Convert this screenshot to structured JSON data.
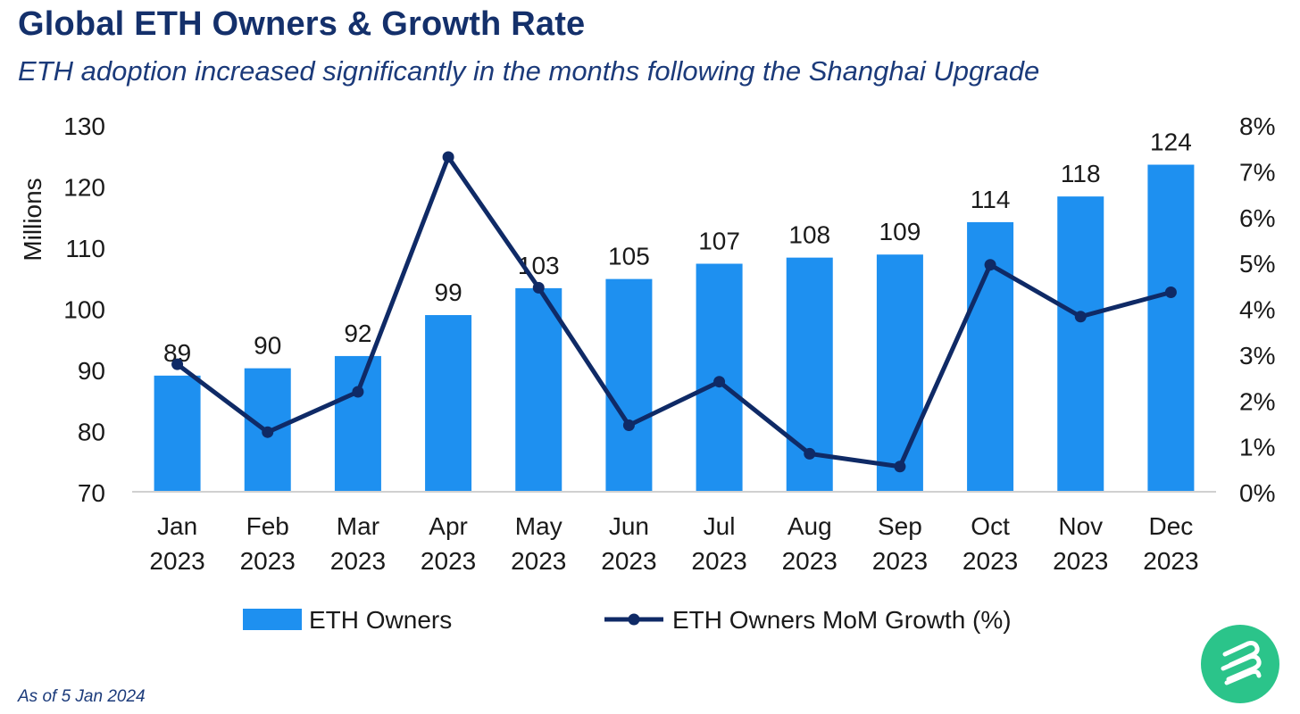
{
  "colors": {
    "title": "#14306b",
    "bar": "#1e90f0",
    "line": "#0f2a66",
    "axis_text": "#1a1a1a",
    "axis_line": "#d0d0d0",
    "logo_bg": "#2bc48a"
  },
  "footnote": "As of 5 Jan 2024",
  "logo": {
    "icon": "brand-logo-icon"
  },
  "chart_data": {
    "type": "bar",
    "title": "Global ETH Owners & Growth Rate",
    "subtitle": "ETH adoption increased significantly in the months following the Shanghai Upgrade",
    "categories": [
      [
        "Jan",
        "2023"
      ],
      [
        "Feb",
        "2023"
      ],
      [
        "Mar",
        "2023"
      ],
      [
        "Apr",
        "2023"
      ],
      [
        "May",
        "2023"
      ],
      [
        "Jun",
        "2023"
      ],
      [
        "Jul",
        "2023"
      ],
      [
        "Aug",
        "2023"
      ],
      [
        "Sep",
        "2023"
      ],
      [
        "Oct",
        "2023"
      ],
      [
        "Nov",
        "2023"
      ],
      [
        "Dec",
        "2023"
      ]
    ],
    "ylabel": "Millions",
    "ylim": [
      70,
      130
    ],
    "yticks": [
      "70",
      "80",
      "90",
      "100",
      "110",
      "120",
      "130"
    ],
    "y2lim": [
      0,
      8
    ],
    "y2ticks": [
      "0%",
      "1%",
      "2%",
      "3%",
      "4%",
      "5%",
      "6%",
      "7%",
      "8%"
    ],
    "grid": false,
    "legend_position": "bottom",
    "series": [
      {
        "name": "ETH Owners",
        "type": "bar",
        "axis": "left",
        "values": [
          89,
          90.2,
          92.2,
          98.9,
          103.3,
          104.8,
          107.3,
          108.3,
          108.8,
          114.1,
          118.3,
          123.5
        ],
        "labels": [
          "89",
          "90",
          "92",
          "99",
          "103",
          "105",
          "107",
          "108",
          "109",
          "114",
          "118",
          "124"
        ]
      },
      {
        "name": "ETH Owners MoM Growth (%)",
        "type": "line",
        "axis": "right",
        "values": [
          2.78,
          1.3,
          2.18,
          7.3,
          4.45,
          1.45,
          2.4,
          0.83,
          0.55,
          4.95,
          3.82,
          4.35
        ]
      }
    ]
  }
}
